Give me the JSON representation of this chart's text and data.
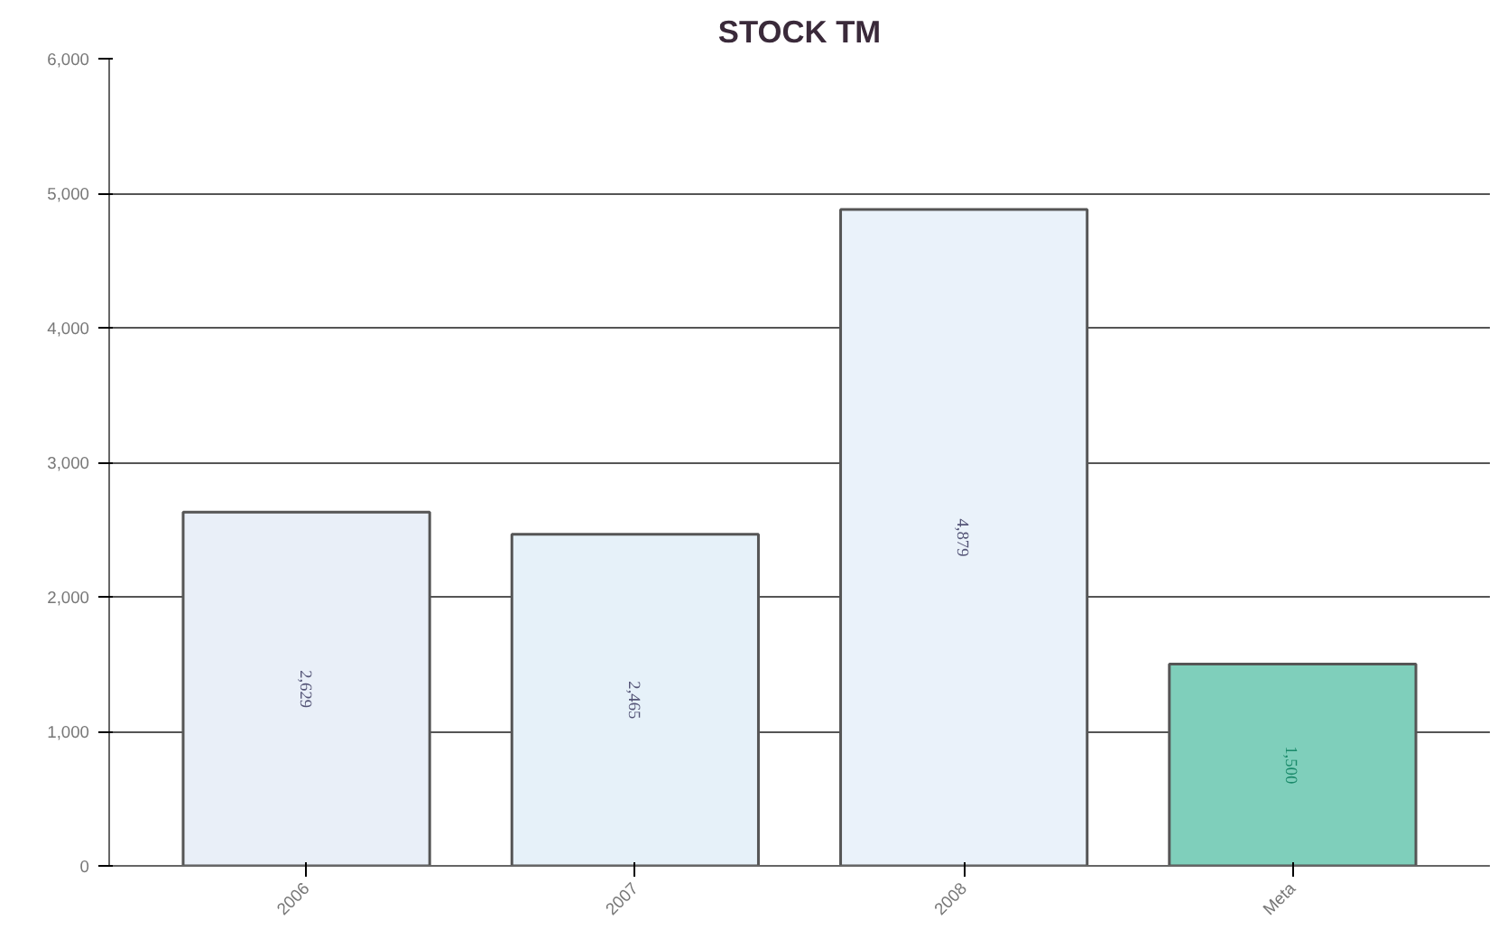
{
  "chart_data": {
    "type": "bar",
    "title": "STOCK TM",
    "categories": [
      "2006",
      "2007",
      "2008",
      "Meta"
    ],
    "values": [
      2629,
      2465,
      4879,
      1500
    ],
    "colors": [
      "#e9eff8",
      "#e6f1f9",
      "#eaf2fa",
      "#7fcfbb"
    ],
    "value_labels": [
      "2,629",
      "2,465",
      "4,879",
      "1,500"
    ],
    "ylim": [
      0,
      6000
    ],
    "yticks": [
      {
        "value": 0,
        "label": "0"
      },
      {
        "value": 1000,
        "label": "1,000"
      },
      {
        "value": 2000,
        "label": "2,000"
      },
      {
        "value": 3000,
        "label": "3,000"
      },
      {
        "value": 4000,
        "label": "4,000"
      },
      {
        "value": 5000,
        "label": "5,000"
      },
      {
        "value": 6000,
        "label": "6,000"
      }
    ],
    "grid": "y"
  }
}
